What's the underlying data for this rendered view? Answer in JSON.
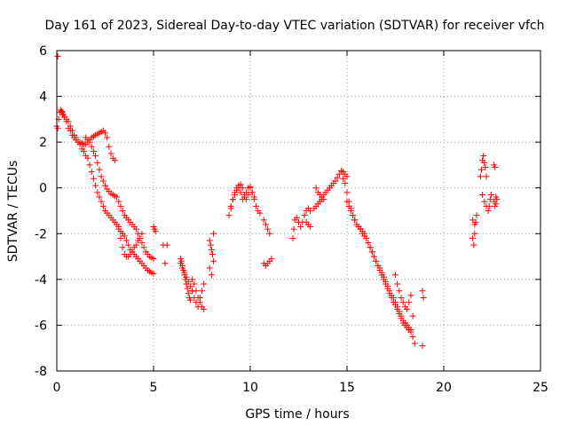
{
  "chart_data": {
    "type": "scatter",
    "title": "Day 161 of 2023, Sidereal Day-to-day VTEC variation (SDTVAR) for receiver vfch",
    "xlabel": "GPS time / hours",
    "ylabel": "SDTVAR / TECUs",
    "xlim": [
      0,
      25
    ],
    "ylim": [
      -8,
      6
    ],
    "xticks": [
      0,
      5,
      10,
      15,
      20,
      25
    ],
    "yticks": [
      -8,
      -6,
      -4,
      -2,
      0,
      2,
      4,
      6
    ],
    "xtick_labels": [
      "0",
      "5",
      "10",
      "15",
      "20",
      "25"
    ],
    "ytick_labels": [
      "-8",
      "-6",
      "-4",
      "-2",
      "0",
      "2",
      "4",
      "6"
    ],
    "grid": true,
    "marker": "+",
    "marker_color": "#ff0000",
    "series": [
      {
        "name": "vfch",
        "x": [
          0.05,
          0.0,
          0.05,
          0.1,
          0.15,
          0.2,
          0.25,
          0.3,
          0.35,
          0.4,
          0.5,
          0.6,
          0.7,
          0.8,
          0.9,
          1.0,
          1.1,
          1.2,
          1.3,
          1.4,
          1.5,
          1.6,
          1.7,
          1.8,
          1.9,
          2.0,
          2.1,
          2.2,
          2.3,
          2.4,
          2.5,
          2.6,
          2.7,
          2.8,
          2.9,
          3.0,
          0.3,
          0.4,
          0.5,
          0.6,
          0.7,
          0.8,
          0.9,
          1.0,
          1.1,
          1.2,
          1.3,
          1.4,
          1.5,
          1.6,
          1.7,
          1.8,
          1.9,
          2.0,
          2.1,
          2.2,
          2.3,
          2.4,
          2.5,
          2.6,
          2.7,
          2.8,
          2.9,
          3.0,
          3.1,
          3.2,
          3.3,
          3.4,
          3.5,
          3.6,
          3.7,
          3.8,
          3.9,
          4.0,
          4.1,
          4.2,
          4.3,
          4.4,
          4.5,
          4.6,
          4.7,
          4.8,
          4.9,
          5.0,
          1.5,
          1.6,
          1.7,
          1.8,
          1.9,
          2.0,
          2.1,
          2.2,
          2.3,
          2.4,
          2.5,
          2.6,
          2.7,
          2.8,
          2.9,
          3.0,
          3.1,
          3.2,
          3.3,
          3.4,
          3.5,
          3.6,
          3.7,
          3.8,
          3.9,
          4.0,
          4.1,
          4.2,
          4.3,
          4.4,
          4.5,
          4.6,
          4.7,
          4.8,
          4.9,
          5.0,
          3.2,
          3.3,
          3.4,
          3.5,
          3.6,
          3.7,
          3.8,
          3.9,
          4.0,
          4.1,
          4.2,
          4.3,
          4.4,
          5.0,
          5.05,
          5.1,
          5.5,
          5.6,
          5.7,
          6.4,
          6.45,
          6.5,
          6.55,
          6.6,
          6.65,
          6.7,
          6.75,
          6.8,
          6.85,
          6.9,
          6.4,
          6.5,
          6.6,
          6.7,
          6.8,
          6.9,
          7.0,
          7.0,
          7.1,
          7.2,
          7.3,
          7.4,
          7.5,
          7.6,
          7.0,
          7.1,
          7.2,
          7.3,
          7.4,
          7.5,
          7.6,
          7.9,
          7.95,
          8.0,
          8.05,
          8.1,
          7.9,
          8.0,
          8.1,
          8.9,
          9.0,
          9.1,
          9.2,
          9.3,
          9.4,
          9.5,
          9.6,
          9.7,
          9.8,
          9.9,
          10.0,
          10.1,
          10.2,
          10.3,
          10.4,
          10.5,
          9.0,
          9.1,
          9.2,
          9.3,
          9.4,
          9.5,
          9.6,
          9.7,
          9.8,
          9.9,
          10.0,
          10.1,
          10.2,
          10.7,
          10.8,
          10.9,
          11.0,
          10.7,
          10.8,
          10.9,
          11.0,
          11.1,
          12.2,
          12.25,
          12.3,
          12.4,
          12.5,
          12.6,
          12.7,
          12.8,
          12.9,
          13.0,
          13.1,
          12.9,
          13.0,
          13.1,
          13.3,
          13.4,
          13.5,
          13.6,
          13.7,
          13.8,
          13.9,
          14.0,
          14.1,
          14.2,
          14.3,
          14.4,
          14.5,
          14.6,
          14.7,
          14.8,
          14.9,
          15.0,
          13.4,
          13.5,
          13.6,
          13.7,
          13.8,
          14.8,
          14.9,
          15.0,
          15.1,
          15.2,
          15.3,
          15.4,
          15.5,
          15.6,
          15.7,
          15.8,
          15.9,
          16.0,
          16.1,
          16.2,
          16.3,
          16.4,
          16.5,
          16.6,
          16.7,
          16.8,
          16.9,
          17.0,
          17.1,
          17.2,
          17.3,
          17.4,
          17.5,
          17.6,
          17.7,
          17.8,
          17.9,
          18.0,
          18.1,
          18.2,
          18.3,
          18.4,
          15.0,
          15.1,
          15.2,
          15.3,
          15.4,
          15.5,
          15.6,
          15.7,
          15.8,
          15.9,
          16.0,
          16.1,
          16.2,
          16.3,
          16.4,
          16.5,
          16.6,
          16.7,
          16.8,
          16.9,
          17.0,
          17.1,
          17.2,
          17.3,
          17.4,
          17.5,
          17.6,
          17.7,
          17.8,
          17.9,
          18.0,
          18.1,
          18.2,
          18.3,
          17.5,
          17.6,
          17.7,
          17.8,
          17.9,
          18.0,
          18.1,
          18.2,
          18.3,
          18.4,
          18.5,
          18.9,
          18.95,
          18.9,
          21.5,
          21.55,
          21.6,
          21.65,
          21.5,
          21.6,
          21.7,
          21.9,
          21.95,
          22.0,
          22.05,
          22.1,
          22.15,
          22.2,
          22.0,
          22.1,
          22.2,
          22.3,
          22.35,
          22.4,
          22.45,
          22.6,
          22.65,
          22.7,
          22.6,
          22.65,
          22.7,
          22.75
        ],
        "y": [
          5.75,
          2.7,
          2.6,
          3.0,
          3.3,
          3.4,
          3.35,
          3.3,
          3.2,
          3.1,
          2.9,
          2.6,
          2.5,
          2.3,
          2.2,
          2.1,
          2.0,
          2.0,
          1.95,
          1.9,
          1.9,
          2.0,
          2.1,
          2.2,
          2.25,
          2.3,
          2.35,
          2.4,
          2.45,
          2.5,
          2.4,
          2.2,
          1.8,
          1.5,
          1.3,
          1.2,
          3.2,
          3.1,
          3.0,
          2.9,
          2.7,
          2.5,
          2.3,
          2.2,
          2.0,
          1.9,
          1.7,
          1.6,
          1.4,
          1.3,
          1.0,
          0.7,
          0.4,
          0.1,
          -0.2,
          -0.4,
          -0.6,
          -0.8,
          -1.0,
          -1.1,
          -1.2,
          -1.3,
          -1.4,
          -1.5,
          -1.6,
          -1.7,
          -1.9,
          -2.0,
          -2.1,
          -2.3,
          -2.5,
          -2.7,
          -2.8,
          -2.9,
          -3.0,
          -3.1,
          -3.2,
          -3.3,
          -3.4,
          -3.5,
          -3.6,
          -3.65,
          -3.7,
          -3.75,
          2.2,
          2.1,
          2.0,
          1.8,
          1.6,
          1.4,
          1.1,
          0.8,
          0.5,
          0.3,
          0.1,
          -0.05,
          -0.15,
          -0.25,
          -0.3,
          -0.35,
          -0.4,
          -0.6,
          -0.8,
          -1.0,
          -1.2,
          -1.3,
          -1.4,
          -1.5,
          -1.6,
          -1.7,
          -1.8,
          -2.0,
          -2.2,
          -2.4,
          -2.6,
          -2.8,
          -2.9,
          -3.0,
          -3.05,
          -3.1,
          -1.8,
          -2.2,
          -2.6,
          -2.9,
          -3.0,
          -3.0,
          -2.9,
          -2.8,
          -2.6,
          -2.5,
          -2.3,
          -2.2,
          -2.0,
          -1.7,
          -1.8,
          -1.9,
          -2.5,
          -3.3,
          -2.5,
          -3.1,
          -3.2,
          -3.4,
          -3.6,
          -3.8,
          -4.0,
          -4.2,
          -4.4,
          -4.6,
          -4.8,
          -4.9,
          -3.3,
          -3.5,
          -3.7,
          -3.9,
          -4.1,
          -4.3,
          -4.5,
          -4.0,
          -4.2,
          -4.5,
          -4.8,
          -5.0,
          -5.2,
          -5.3,
          -4.5,
          -4.8,
          -5.0,
          -5.2,
          -4.8,
          -4.5,
          -4.2,
          -2.3,
          -2.5,
          -2.7,
          -2.9,
          -3.2,
          -3.5,
          -3.8,
          -2.0,
          -1.2,
          -0.9,
          -0.5,
          -0.2,
          0.0,
          0.1,
          0.15,
          0.0,
          -0.3,
          -0.5,
          -0.3,
          0.0,
          -0.2,
          -0.5,
          -0.8,
          -1.0,
          -1.1,
          -0.8,
          -0.5,
          -0.3,
          -0.1,
          0.0,
          -0.2,
          -0.5,
          -0.4,
          -0.2,
          0.0,
          0.05,
          -0.2,
          -0.4,
          -1.4,
          -1.6,
          -1.8,
          -2.0,
          -3.3,
          -3.4,
          -3.3,
          -3.2,
          -3.1,
          -2.2,
          -1.8,
          -1.4,
          -1.3,
          -1.5,
          -1.7,
          -1.5,
          -1.2,
          -1.0,
          -0.9,
          -1.0,
          -1.5,
          -1.6,
          -1.7,
          -0.9,
          -0.8,
          -0.7,
          -0.6,
          -0.5,
          -0.3,
          -0.2,
          -0.1,
          0.0,
          0.1,
          0.2,
          0.3,
          0.45,
          0.6,
          0.75,
          0.7,
          0.6,
          0.5,
          0.0,
          -0.2,
          -0.3,
          -0.4,
          -0.5,
          0.4,
          0.2,
          -0.2,
          -0.6,
          -0.9,
          -1.2,
          -1.4,
          -1.6,
          -1.7,
          -1.8,
          -1.9,
          -2.0,
          -2.2,
          -2.4,
          -2.6,
          -2.8,
          -3.0,
          -3.2,
          -3.4,
          -3.6,
          -3.8,
          -4.0,
          -4.2,
          -4.4,
          -4.6,
          -4.8,
          -5.0,
          -5.1,
          -5.3,
          -5.5,
          -5.7,
          -5.9,
          -6.0,
          -6.1,
          -6.2,
          -6.3,
          -6.5,
          -0.6,
          -0.8,
          -1.0,
          -1.2,
          -1.4,
          -1.6,
          -1.7,
          -1.8,
          -2.0,
          -2.1,
          -2.2,
          -2.4,
          -2.6,
          -2.8,
          -3.0,
          -3.2,
          -3.4,
          -3.5,
          -3.7,
          -3.9,
          -4.1,
          -4.3,
          -4.5,
          -4.7,
          -4.8,
          -5.0,
          -5.2,
          -5.4,
          -5.6,
          -5.8,
          -5.9,
          -6.0,
          -6.1,
          -6.2,
          -3.8,
          -4.2,
          -4.5,
          -4.8,
          -5.0,
          -5.2,
          -5.3,
          -5.0,
          -4.7,
          -5.6,
          -6.8,
          -4.5,
          -4.8,
          -6.9,
          -2.2,
          -2.5,
          -2.0,
          -1.5,
          -1.4,
          -1.6,
          -1.2,
          0.5,
          0.8,
          1.2,
          1.4,
          1.1,
          0.9,
          0.5,
          -0.3,
          -0.6,
          -0.8,
          -1.0,
          -0.8,
          -0.5,
          -0.3,
          1.0,
          0.9,
          -0.4,
          -0.6,
          -0.8,
          -0.7,
          -0.5
        ]
      }
    ]
  }
}
